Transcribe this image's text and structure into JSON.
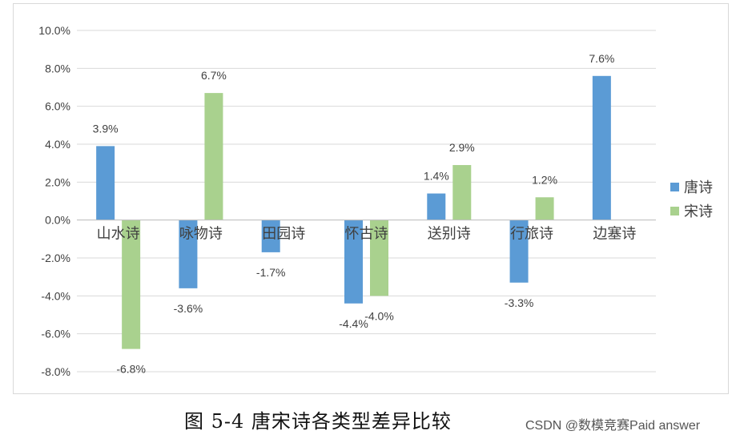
{
  "caption": "图 5-4   唐宋诗各类型差异比较",
  "watermark": "CSDN @数模竞赛Paid answer",
  "chart_data": {
    "type": "bar",
    "categories": [
      "山水诗",
      "咏物诗",
      "田园诗",
      "怀古诗",
      "送别诗",
      "行旅诗",
      "边塞诗"
    ],
    "series": [
      {
        "name": "唐诗",
        "color": "#5b9bd5",
        "values": [
          3.9,
          -3.6,
          -1.7,
          -4.4,
          1.4,
          -3.3,
          7.6
        ],
        "labels": [
          "3.9%",
          "-3.6%",
          "-1.7%",
          "-4.4%",
          "1.4%",
          "-3.3%",
          "7.6%"
        ]
      },
      {
        "name": "宋诗",
        "color": "#a9d18e",
        "values": [
          -6.8,
          6.7,
          null,
          -4.0,
          2.9,
          1.2,
          null
        ],
        "labels": [
          "-6.8%",
          "6.7%",
          "",
          "-4.0%",
          "2.9%",
          "1.2%",
          ""
        ]
      }
    ],
    "ylim": [
      -8,
      10
    ],
    "yticks": [
      10,
      8,
      6,
      4,
      2,
      0,
      -2,
      -4,
      -6,
      -8
    ],
    "ytick_labels": [
      "10.0%",
      "8.0%",
      "6.0%",
      "4.0%",
      "2.0%",
      "0.0%",
      "-2.0%",
      "-4.0%",
      "-6.0%",
      "-8.0%"
    ],
    "grid": true,
    "legend_position": "right"
  }
}
